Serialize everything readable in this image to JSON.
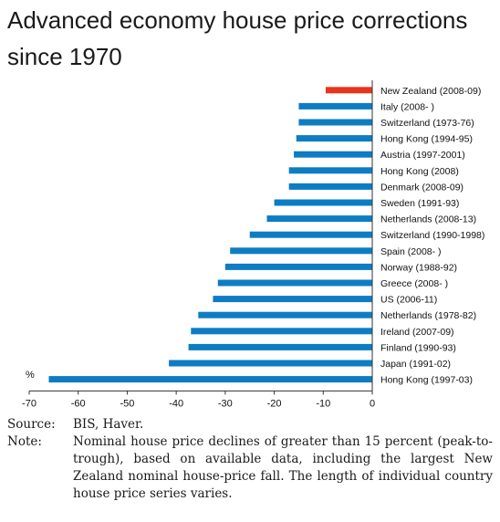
{
  "title": "Advanced economy house price corrections since 1970",
  "unit": "%",
  "source_label": "Source:",
  "source_text": "BIS, Haver.",
  "note_label": "Note:",
  "note_text": "Nominal house price declines of greater than 15 percent (peak-to-trough), based on available data, including the largest New Zealand nominal house-price fall. The length of individual country house price series varies.",
  "colors": {
    "highlight": "#e8341c",
    "bar": "#0e7cc3",
    "axis": "#333333"
  },
  "chart_data": {
    "type": "bar",
    "orientation": "horizontal",
    "title": "Advanced economy house price corrections since 1970",
    "xlabel": "",
    "ylabel": "%",
    "xlim": [
      -70,
      0
    ],
    "xticks": [
      -70,
      -60,
      -50,
      -40,
      -30,
      -20,
      -10,
      0
    ],
    "grid": false,
    "categories": [
      "New Zealand (2008-09)",
      "Italy (2008- )",
      "Switzerland (1973-76)",
      "Hong Kong (1994-95)",
      "Austria (1997-2001)",
      "Hong Kong (2008)",
      "Denmark (2008-09)",
      "Sweden (1991-93)",
      "Netherlands (2008-13)",
      "Switzerland (1990-1998)",
      "Spain (2008- )",
      "Norway (1988-92)",
      "Greece (2008- )",
      "US (2006-11)",
      "Netherlands (1978-82)",
      "Ireland (2007-09)",
      "Finland (1990-93)",
      "Japan (1991-02)",
      "Hong Kong (1997-03)"
    ],
    "values": [
      -9.5,
      -15,
      -15,
      -15.5,
      -16,
      -17,
      -17,
      -20,
      -21.5,
      -25,
      -29,
      -30,
      -31.5,
      -32.5,
      -35.5,
      -37,
      -37.5,
      -41.5,
      -66
    ],
    "highlight_index": 0
  }
}
